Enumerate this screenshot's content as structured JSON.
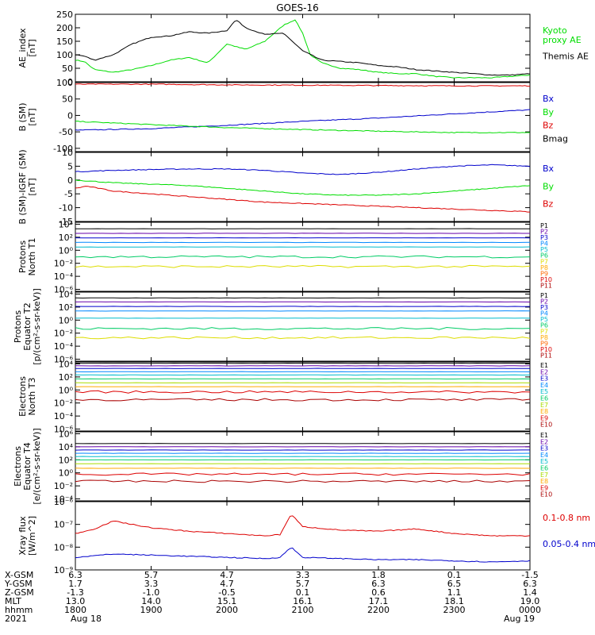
{
  "title": "GOES-16",
  "chart_data": [
    {
      "id": "ae",
      "type": "line",
      "ylabel": "AE_index\n[nT]",
      "ylim": [
        0,
        250
      ],
      "yscale": "linear",
      "yticks": [
        0,
        50,
        100,
        150,
        200,
        250
      ],
      "ytick_labels": [
        "0",
        "50",
        "100",
        "150",
        "200",
        "250"
      ],
      "series": [
        {
          "name": "Kyoto\nproxy AE",
          "color": "#00dd00",
          "points": [
            [
              0,
              80
            ],
            [
              0.12,
              75
            ],
            [
              0.25,
              45
            ],
            [
              0.5,
              35
            ],
            [
              0.75,
              45
            ],
            [
              1,
              60
            ],
            [
              1.25,
              80
            ],
            [
              1.5,
              90
            ],
            [
              1.75,
              70
            ],
            [
              2,
              140
            ],
            [
              2.12,
              130
            ],
            [
              2.25,
              120
            ],
            [
              2.5,
              150
            ],
            [
              2.75,
              210
            ],
            [
              2.9,
              230
            ],
            [
              3,
              180
            ],
            [
              3.1,
              100
            ],
            [
              3.25,
              70
            ],
            [
              3.5,
              50
            ],
            [
              3.75,
              45
            ],
            [
              4,
              35
            ],
            [
              4.25,
              30
            ],
            [
              4.5,
              30
            ],
            [
              4.75,
              20
            ],
            [
              5,
              15
            ],
            [
              5.25,
              15
            ],
            [
              5.5,
              15
            ],
            [
              5.75,
              20
            ],
            [
              6,
              25
            ]
          ]
        },
        {
          "name": "Themis AE",
          "color": "#000000",
          "points": [
            [
              0,
              100
            ],
            [
              0.12,
              95
            ],
            [
              0.25,
              80
            ],
            [
              0.5,
              100
            ],
            [
              0.75,
              140
            ],
            [
              1,
              165
            ],
            [
              1.25,
              170
            ],
            [
              1.5,
              185
            ],
            [
              1.75,
              180
            ],
            [
              2,
              190
            ],
            [
              2.12,
              230
            ],
            [
              2.25,
              200
            ],
            [
              2.5,
              175
            ],
            [
              2.75,
              180
            ],
            [
              2.9,
              140
            ],
            [
              3,
              115
            ],
            [
              3.25,
              80
            ],
            [
              3.5,
              75
            ],
            [
              3.75,
              70
            ],
            [
              4,
              60
            ],
            [
              4.25,
              55
            ],
            [
              4.5,
              45
            ],
            [
              4.75,
              40
            ],
            [
              5,
              35
            ],
            [
              5.25,
              30
            ],
            [
              5.5,
              25
            ],
            [
              5.75,
              25
            ],
            [
              6,
              30
            ]
          ]
        }
      ]
    },
    {
      "id": "bsm",
      "type": "line",
      "ylabel": "B (SM)\n[nT]",
      "ylim": [
        -110,
        100
      ],
      "yscale": "linear",
      "yticks": [
        -100,
        -50,
        0,
        50,
        100
      ],
      "ytick_labels": [
        "-100",
        "-50",
        "0",
        "50",
        "100"
      ],
      "series": [
        {
          "name": "Bx",
          "color": "#0000cc",
          "points": [
            [
              0,
              -45
            ],
            [
              1,
              -40
            ],
            [
              2,
              -30
            ],
            [
              3,
              -18
            ],
            [
              4,
              -8
            ],
            [
              5,
              5
            ],
            [
              6,
              17
            ]
          ]
        },
        {
          "name": "By",
          "color": "#00dd00",
          "points": [
            [
              0,
              -18
            ],
            [
              1,
              -28
            ],
            [
              2,
              -37
            ],
            [
              3,
              -43
            ],
            [
              4,
              -48
            ],
            [
              5,
              -52
            ],
            [
              6,
              -52
            ]
          ]
        },
        {
          "name": "Bz",
          "color": "#dd0000",
          "points": [
            [
              0,
              95
            ],
            [
              1,
              95
            ],
            [
              2,
              93
            ],
            [
              3,
              92
            ],
            [
              4,
              91
            ],
            [
              5,
              90
            ],
            [
              6,
              90
            ]
          ]
        },
        {
          "name": "Bmag",
          "color": "#000000",
          "points": []
        }
      ]
    },
    {
      "id": "bigrf",
      "type": "line",
      "ylabel": "B (SM)-IGRF (SM)\n[nT]",
      "ylim": [
        -15,
        10
      ],
      "yscale": "linear",
      "yticks": [
        -15,
        -10,
        -5,
        0,
        5,
        10
      ],
      "ytick_labels": [
        "-15",
        "-10",
        "-5",
        "0",
        "5",
        "10"
      ],
      "series": [
        {
          "name": "Bx",
          "color": "#0000cc",
          "points": [
            [
              0,
              3
            ],
            [
              0.5,
              3.5
            ],
            [
              1,
              3.8
            ],
            [
              1.5,
              4
            ],
            [
              2,
              4
            ],
            [
              2.5,
              3.5
            ],
            [
              3,
              2.5
            ],
            [
              3.5,
              2
            ],
            [
              4,
              2.8
            ],
            [
              4.5,
              4
            ],
            [
              5,
              5
            ],
            [
              5.5,
              5.5
            ],
            [
              6,
              5
            ]
          ]
        },
        {
          "name": "By",
          "color": "#00dd00",
          "points": [
            [
              0,
              0
            ],
            [
              0.5,
              -1
            ],
            [
              1,
              -1.5
            ],
            [
              1.5,
              -2
            ],
            [
              2,
              -3
            ],
            [
              2.5,
              -4
            ],
            [
              3,
              -5
            ],
            [
              3.5,
              -5.5
            ],
            [
              4,
              -5.5
            ],
            [
              4.5,
              -5
            ],
            [
              5,
              -4
            ],
            [
              5.5,
              -3
            ],
            [
              6,
              -2
            ]
          ]
        },
        {
          "name": "Bz",
          "color": "#dd0000",
          "points": [
            [
              0,
              -3
            ],
            [
              0.15,
              -2.2
            ],
            [
              0.5,
              -4
            ],
            [
              1,
              -5
            ],
            [
              1.5,
              -6
            ],
            [
              2,
              -7
            ],
            [
              2.5,
              -8
            ],
            [
              3,
              -8.5
            ],
            [
              3.5,
              -9
            ],
            [
              4,
              -9.5
            ],
            [
              4.5,
              -10
            ],
            [
              5,
              -10.5
            ],
            [
              5.5,
              -11
            ],
            [
              6,
              -11.5
            ]
          ]
        }
      ]
    },
    {
      "id": "protons_t1",
      "type": "line",
      "ylabel": "Protons\nNorth T1",
      "ylim": [
        -6.3,
        4.3
      ],
      "yscale": "log",
      "yticks": [
        -6,
        -4,
        -2,
        0,
        2,
        4
      ],
      "ytick_labels": [
        "10⁻⁶",
        "10⁻⁴",
        "10⁻²",
        "10⁰",
        "10²",
        "10⁴"
      ],
      "series": [
        {
          "name": "P1",
          "color": "#000000",
          "level": 3.3
        },
        {
          "name": "P2",
          "color": "#6600aa",
          "level": 2.6
        },
        {
          "name": "P3",
          "color": "#0000cc",
          "level": 1.9
        },
        {
          "name": "P4",
          "color": "#0088ff",
          "level": 1.2
        },
        {
          "name": "P5",
          "color": "#00bbcc",
          "level": 0.5
        },
        {
          "name": "P6",
          "color": "#00cc66",
          "level": -1.0
        },
        {
          "name": "P7",
          "color": "#dddd00",
          "level": -2.5
        },
        {
          "name": "P8",
          "color": "#ffaa00",
          "level": null
        },
        {
          "name": "P9",
          "color": "#ff6600",
          "level": null
        },
        {
          "name": "P10",
          "color": "#dd0000",
          "level": null
        },
        {
          "name": "P11",
          "color": "#aa0000",
          "level": null
        }
      ]
    },
    {
      "id": "protons_t2",
      "type": "line",
      "ylabel": "Protons\nEquator T2\n[p/(cm²-s-sr-keV)]",
      "ylim": [
        -6.3,
        4.3
      ],
      "yscale": "log",
      "yticks": [
        -6,
        -4,
        -2,
        0,
        2,
        4
      ],
      "ytick_labels": [
        "10⁻⁶",
        "10⁻⁴",
        "10⁻²",
        "10⁰",
        "10²",
        "10⁴"
      ],
      "series": [
        {
          "name": "P1",
          "color": "#000000",
          "level": 3.4
        },
        {
          "name": "P2",
          "color": "#6600aa",
          "level": 2.8
        },
        {
          "name": "P3",
          "color": "#0000cc",
          "level": 2.1
        },
        {
          "name": "P4",
          "color": "#0088ff",
          "level": 1.4
        },
        {
          "name": "P5",
          "color": "#00bbcc",
          "level": 0.3
        },
        {
          "name": "P6",
          "color": "#00cc66",
          "level": -1.3
        },
        {
          "name": "P7",
          "color": "#dddd00",
          "level": -2.7
        },
        {
          "name": "P8",
          "color": "#ffaa00",
          "level": null
        },
        {
          "name": "P9",
          "color": "#ff6600",
          "level": null
        },
        {
          "name": "P10",
          "color": "#dd0000",
          "level": null
        },
        {
          "name": "P11",
          "color": "#aa0000",
          "level": null
        }
      ]
    },
    {
      "id": "electrons_t3",
      "type": "line",
      "ylabel": "Electrons\nNorth T3",
      "ylim": [
        -6.3,
        4.3
      ],
      "yscale": "log",
      "yticks": [
        -6,
        -4,
        -2,
        0,
        2,
        4
      ],
      "ytick_labels": [
        "10⁻⁶",
        "10⁻⁴",
        "10⁻²",
        "10⁰",
        "10²",
        "10⁴"
      ],
      "series": [
        {
          "name": "E1",
          "color": "#000000",
          "level": 4.1
        },
        {
          "name": "E2",
          "color": "#6600aa",
          "level": 3.7
        },
        {
          "name": "E3",
          "color": "#0000cc",
          "level": 3.3
        },
        {
          "name": "E4",
          "color": "#0088ff",
          "level": 2.8
        },
        {
          "name": "E5",
          "color": "#00bbcc",
          "level": 2.3
        },
        {
          "name": "E6",
          "color": "#00cc66",
          "level": 1.7
        },
        {
          "name": "E7",
          "color": "#aadd00",
          "level": 1.1
        },
        {
          "name": "E8",
          "color": "#ffaa00",
          "level": 0.5
        },
        {
          "name": "E9",
          "color": "#dd0000",
          "level": -0.3
        },
        {
          "name": "E10",
          "color": "#aa0000",
          "level": -1.5
        }
      ]
    },
    {
      "id": "electrons_t4",
      "type": "line",
      "ylabel": "Electrons\nEquator T4\n[e/(cm²-s-sr-keV)]",
      "ylim": [
        -4.3,
        6.3
      ],
      "yscale": "log",
      "yticks": [
        -4,
        -2,
        0,
        2,
        4,
        6
      ],
      "ytick_labels": [
        "10⁻⁴",
        "10⁻²",
        "10⁰",
        "10²",
        "10⁴",
        "10⁶"
      ],
      "series": [
        {
          "name": "E1",
          "color": "#000000",
          "level": 4.5
        },
        {
          "name": "E2",
          "color": "#6600aa",
          "level": 4.0
        },
        {
          "name": "E3",
          "color": "#0000cc",
          "level": 3.5
        },
        {
          "name": "E4",
          "color": "#0088ff",
          "level": 3.0
        },
        {
          "name": "E5",
          "color": "#00bbcc",
          "level": 2.5
        },
        {
          "name": "E6",
          "color": "#00cc66",
          "level": 2.0
        },
        {
          "name": "E7",
          "color": "#aadd00",
          "level": 1.4
        },
        {
          "name": "E8",
          "color": "#ffaa00",
          "level": 0.7
        },
        {
          "name": "E9",
          "color": "#dd0000",
          "level": -0.2
        },
        {
          "name": "E10",
          "color": "#aa0000",
          "level": -1.3
        }
      ]
    },
    {
      "id": "xray",
      "type": "line",
      "ylabel": "Xray flux\n[W/m^2]",
      "ylim": [
        -9,
        -6
      ],
      "yscale": "log",
      "yticks": [
        -9,
        -8,
        -7,
        -6
      ],
      "ytick_labels": [
        "10⁻⁹",
        "10⁻⁸",
        "10⁻⁷",
        "10⁻⁶"
      ],
      "series": [
        {
          "name": "0.1-0.8 nm",
          "color": "#dd0000",
          "points": [
            [
              0,
              -7.4
            ],
            [
              0.25,
              -7.2
            ],
            [
              0.5,
              -6.85
            ],
            [
              0.75,
              -7.0
            ],
            [
              1,
              -7.15
            ],
            [
              1.5,
              -7.3
            ],
            [
              2,
              -7.4
            ],
            [
              2.5,
              -7.5
            ],
            [
              2.7,
              -7.45
            ],
            [
              2.85,
              -6.55
            ],
            [
              3,
              -7.1
            ],
            [
              3.5,
              -7.25
            ],
            [
              4,
              -7.3
            ],
            [
              4.5,
              -7.2
            ],
            [
              5,
              -7.4
            ],
            [
              5.5,
              -7.5
            ],
            [
              6,
              -7.5
            ]
          ]
        },
        {
          "name": "0.05-0.4 nm",
          "color": "#0000cc",
          "points": [
            [
              0,
              -8.45
            ],
            [
              0.5,
              -8.3
            ],
            [
              1,
              -8.35
            ],
            [
              1.5,
              -8.4
            ],
            [
              2,
              -8.45
            ],
            [
              2.5,
              -8.5
            ],
            [
              2.7,
              -8.45
            ],
            [
              2.85,
              -8.0
            ],
            [
              3,
              -8.45
            ],
            [
              3.5,
              -8.5
            ],
            [
              4,
              -8.55
            ],
            [
              4.5,
              -8.55
            ],
            [
              5,
              -8.6
            ],
            [
              5.5,
              -8.65
            ],
            [
              6,
              -8.6
            ]
          ]
        }
      ]
    }
  ],
  "xaxis": {
    "xlim": [
      0,
      6
    ],
    "tick_positions": [
      0,
      1,
      2,
      3,
      4,
      5,
      6
    ],
    "rows": [
      {
        "label": "X-GSM",
        "values": [
          "6.3",
          "5.7",
          "4.7",
          "3.3",
          "1.8",
          "0.1",
          "-1.5"
        ]
      },
      {
        "label": "Y-GSM",
        "values": [
          "1.7",
          "3.3",
          "4.7",
          "5.7",
          "6.3",
          "6.5",
          "6.3"
        ]
      },
      {
        "label": "Z-GSM",
        "values": [
          "-1.3",
          "-1.0",
          "-0.5",
          "0.1",
          "0.6",
          "1.1",
          "1.4"
        ]
      },
      {
        "label": "MLT",
        "values": [
          "13.0",
          "14.0",
          "15.1",
          "16.1",
          "17.1",
          "18.1",
          "19.0"
        ]
      },
      {
        "label": "hhmm",
        "values": [
          "1800",
          "1900",
          "2000",
          "2100",
          "2200",
          "2300",
          "0000"
        ]
      },
      {
        "label": "2021",
        "values": [
          "Aug 18",
          "",
          "",
          "",
          "",
          "",
          "Aug 19"
        ]
      }
    ]
  }
}
